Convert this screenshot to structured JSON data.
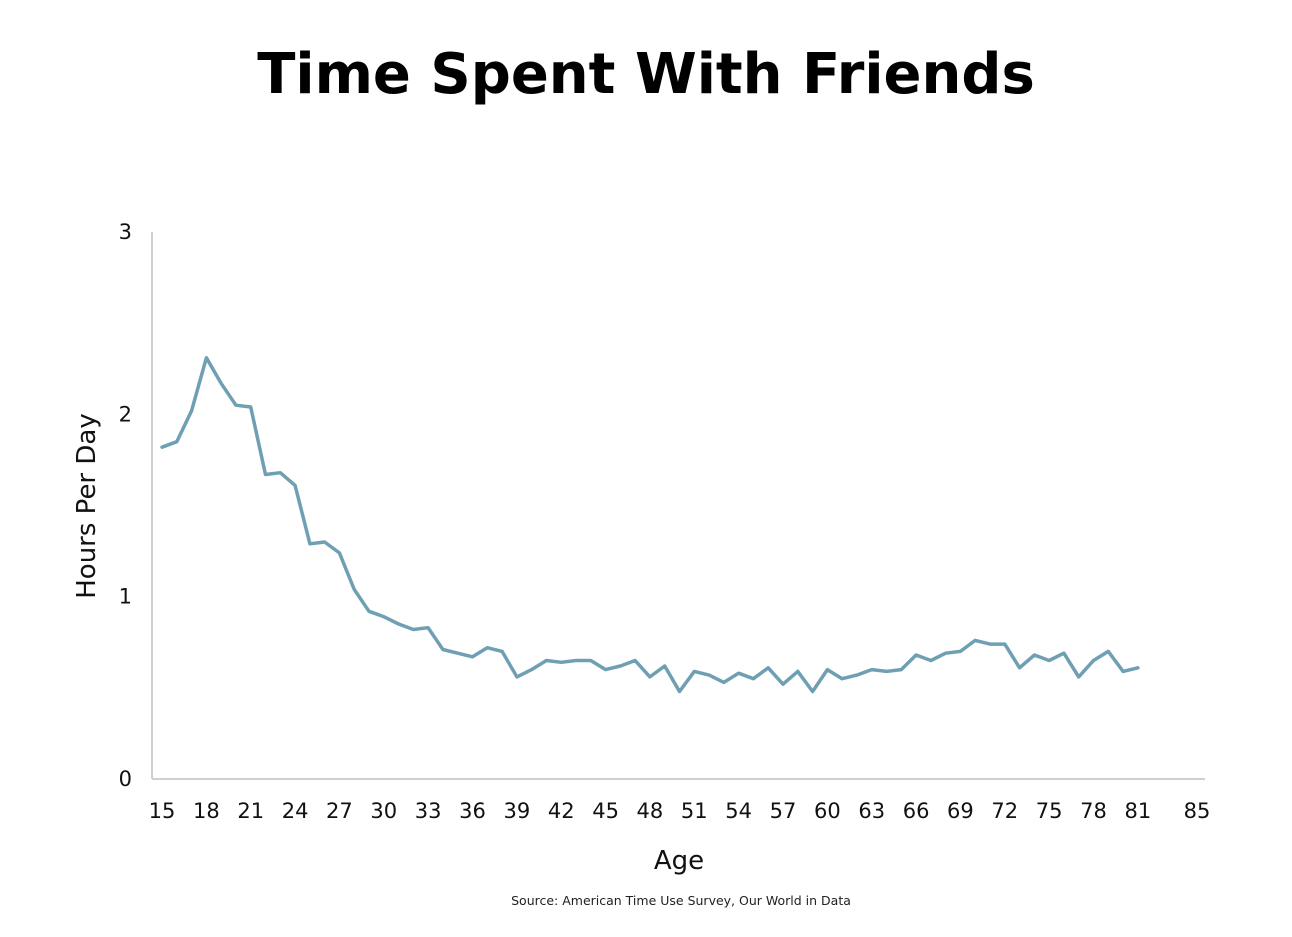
{
  "chart_data": {
    "type": "line",
    "title": "Time Spent With Friends",
    "xlabel": "Age",
    "ylabel": "Hours Per Day",
    "source": "Source: American Time Use Survey, Our World in Data",
    "xlim": [
      15,
      85
    ],
    "ylim": [
      0,
      3
    ],
    "x_ticks": [
      "15",
      "18",
      "21",
      "24",
      "27",
      "30",
      "33",
      "36",
      "39",
      "42",
      "45",
      "48",
      "51",
      "54",
      "57",
      "60",
      "63",
      "66",
      "69",
      "72",
      "75",
      "78",
      "81",
      "85"
    ],
    "y_ticks": [
      "0",
      "1",
      "2",
      "3"
    ],
    "grid": false,
    "series": [
      {
        "color": "#6f9fb3",
        "x": [
          15,
          16,
          17,
          18,
          19,
          20,
          21,
          22,
          23,
          24,
          25,
          26,
          27,
          28,
          29,
          30,
          31,
          32,
          33,
          34,
          35,
          36,
          37,
          38,
          39,
          40,
          41,
          42,
          43,
          44,
          45,
          46,
          47,
          48,
          49,
          50,
          51,
          52,
          53,
          54,
          55,
          56,
          57,
          58,
          59,
          60,
          61,
          62,
          63,
          64,
          65,
          66,
          67,
          68,
          69,
          70,
          71,
          72,
          73,
          74,
          75,
          76,
          77,
          78,
          79,
          80,
          81
        ],
        "y": [
          1.82,
          1.85,
          2.02,
          2.31,
          2.17,
          2.05,
          2.04,
          1.67,
          1.68,
          1.61,
          1.29,
          1.3,
          1.24,
          1.04,
          0.92,
          0.89,
          0.85,
          0.82,
          0.83,
          0.71,
          0.69,
          0.67,
          0.72,
          0.7,
          0.56,
          0.6,
          0.65,
          0.64,
          0.65,
          0.65,
          0.6,
          0.62,
          0.65,
          0.56,
          0.62,
          0.48,
          0.59,
          0.57,
          0.53,
          0.58,
          0.55,
          0.61,
          0.52,
          0.59,
          0.48,
          0.6,
          0.55,
          0.57,
          0.6,
          0.59,
          0.6,
          0.68,
          0.65,
          0.69,
          0.7,
          0.76,
          0.74,
          0.74,
          0.61,
          0.68,
          0.65,
          0.69,
          0.56,
          0.65,
          0.7,
          0.59,
          0.61
        ]
      }
    ]
  }
}
